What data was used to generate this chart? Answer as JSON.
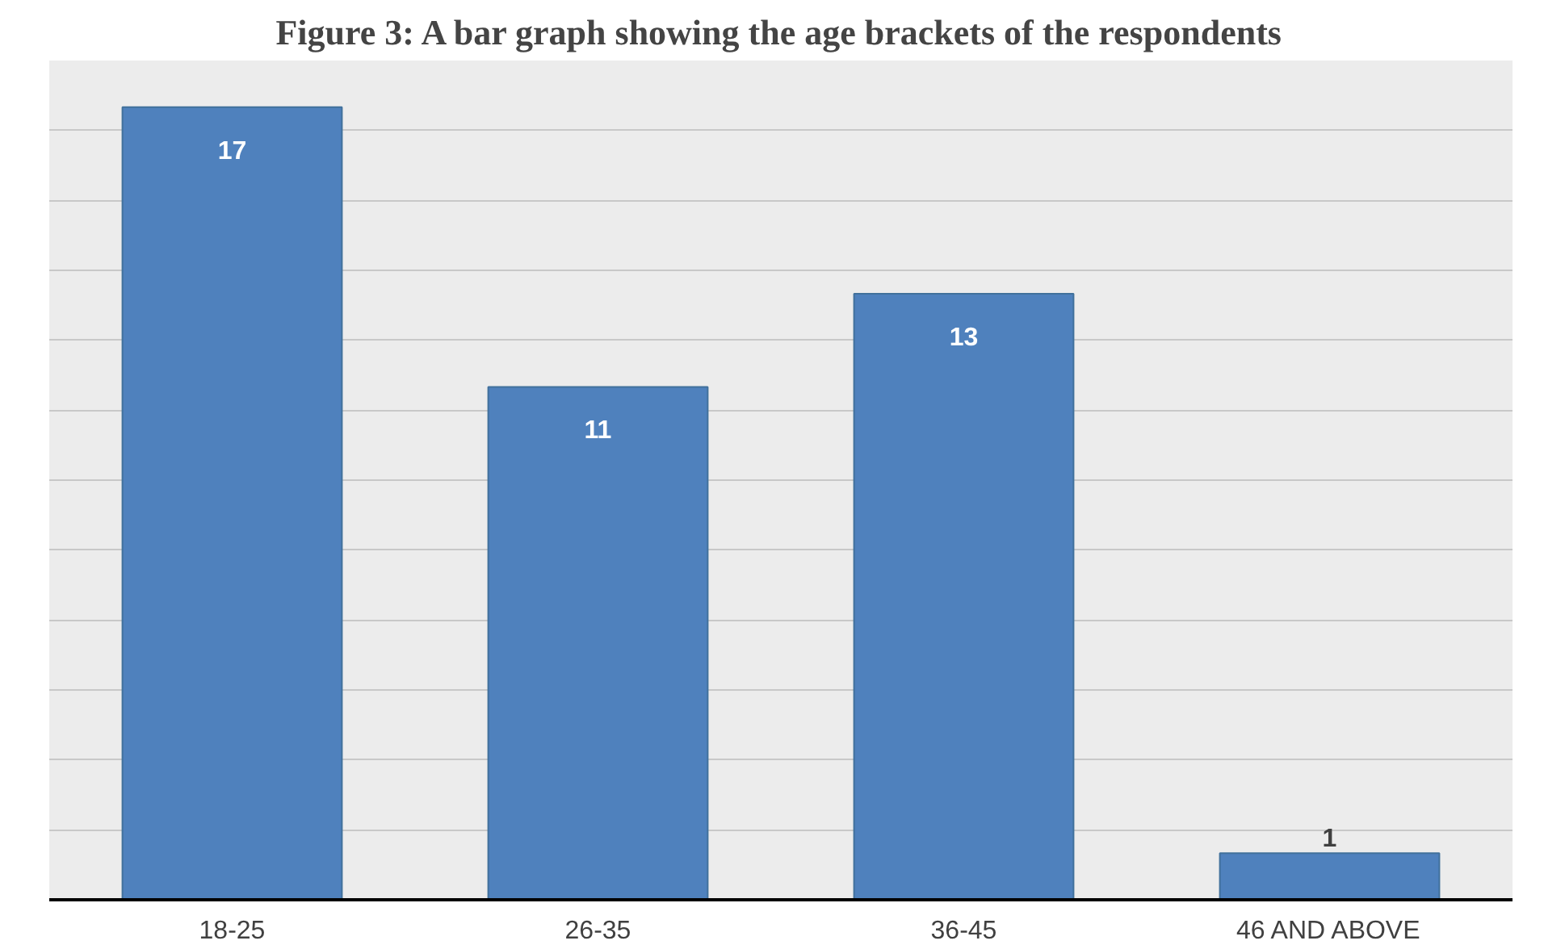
{
  "chart_data": {
    "type": "bar",
    "title": "Figure 3: A bar graph showing the age brackets of the respondents",
    "categories": [
      "18-25",
      "26-35",
      "36-45",
      "46 AND ABOVE"
    ],
    "values": [
      17,
      11,
      13,
      1
    ],
    "color": "#4f81bd",
    "data_labels": true,
    "ylim": [
      0,
      18
    ],
    "yticks": [
      {
        "value": 0,
        "label": null
      },
      {
        "value": 1.5,
        "label": null
      },
      {
        "value": 3,
        "label": null
      },
      {
        "value": 4.5,
        "label": null
      },
      {
        "value": 6,
        "label": null
      },
      {
        "value": 7.5,
        "label": null
      },
      {
        "value": 9,
        "label": null
      },
      {
        "value": 10.5,
        "label": null
      },
      {
        "value": 12,
        "label": null
      },
      {
        "value": 13.5,
        "label": null
      },
      {
        "value": 15,
        "label": null
      },
      {
        "value": 16.5,
        "label": null
      },
      {
        "value": 18,
        "label": null
      }
    ],
    "grid": "y",
    "tick_labels": "x"
  }
}
